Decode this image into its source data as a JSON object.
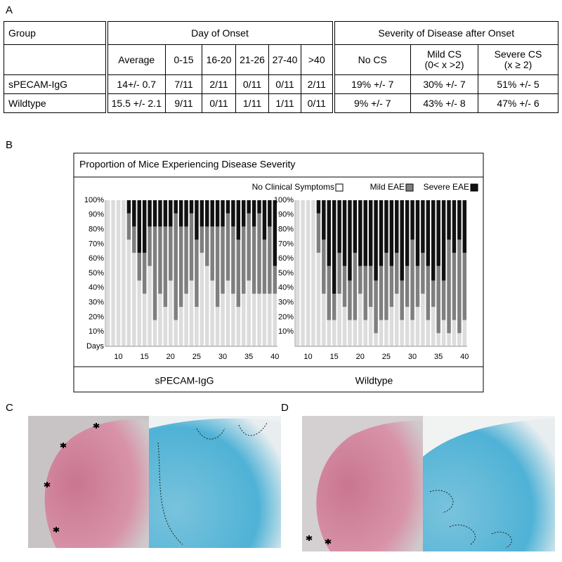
{
  "panel_a": {
    "label": "A",
    "header1": [
      "Group",
      "Day of Onset",
      "Severity of Disease after Onset"
    ],
    "header2": [
      "Average",
      "0-15",
      "16-20",
      "21-26",
      "27-40",
      ">40",
      "No CS",
      [
        "Mild CS",
        "(0< x >2)"
      ],
      [
        "Severe CS",
        "(x ≥ 2)"
      ]
    ],
    "rows": [
      [
        "sPECAM-IgG",
        "14+/- 0.7",
        "7/11",
        "2/11",
        "0/11",
        "0/11",
        "2/11",
        "19% +/- 7",
        "30% +/- 7",
        "51% +/- 5"
      ],
      [
        "Wildtype",
        "15.5 +/- 2.1",
        "9/11",
        "0/11",
        "1/11",
        "1/11",
        "0/11",
        "9% +/- 7",
        "43% +/- 8",
        "47% +/- 6"
      ]
    ]
  },
  "panel_b": {
    "label": "B",
    "title": "Proportion of Mice Experiencing Disease Severity"
  },
  "panel_c": {
    "label": "C"
  },
  "panel_d": {
    "label": "D"
  },
  "chart_data": [
    {
      "type": "bar",
      "stacked": true,
      "label": "sPECAM-IgG",
      "xlabel": "Days",
      "x": [
        8,
        9,
        10,
        11,
        12,
        13,
        14,
        15,
        16,
        17,
        18,
        19,
        20,
        21,
        22,
        23,
        24,
        25,
        26,
        27,
        28,
        29,
        30,
        31,
        32,
        33,
        34,
        35,
        36,
        37,
        38,
        39,
        40
      ],
      "xlim": [
        7.5,
        40.5
      ],
      "xticks": [
        10,
        15,
        20,
        25,
        30,
        35,
        40
      ],
      "ylim": [
        0,
        100
      ],
      "yticks": [
        {
          "value": 10,
          "label": "10%"
        },
        {
          "value": 20,
          "label": "20%"
        },
        {
          "value": 30,
          "label": "30%"
        },
        {
          "value": 40,
          "label": "40%"
        },
        {
          "value": 50,
          "label": "50%"
        },
        {
          "value": 60,
          "label": "60%"
        },
        {
          "value": 70,
          "label": "70%"
        },
        {
          "value": 80,
          "label": "80%"
        },
        {
          "value": 90,
          "label": "90%"
        },
        {
          "value": 100,
          "label": "100%"
        }
      ],
      "series": [
        {
          "name": "No Clinical Symptoms",
          "color": "#dcdcdc",
          "values": [
            100,
            100,
            100,
            100,
            73,
            64,
            45,
            36,
            55,
            18,
            36,
            27,
            45,
            18,
            27,
            36,
            45,
            27,
            64,
            55,
            45,
            27,
            36,
            45,
            36,
            27,
            36,
            45,
            36,
            36,
            36,
            36,
            36
          ]
        },
        {
          "name": "Mild EAE",
          "color": "#7f7f7f",
          "values": [
            0,
            0,
            0,
            0,
            18,
            18,
            19,
            28,
            27,
            64,
            46,
            55,
            37,
            73,
            55,
            46,
            46,
            46,
            18,
            27,
            37,
            55,
            46,
            46,
            46,
            46,
            46,
            46,
            46,
            55,
            37,
            46,
            19
          ]
        },
        {
          "name": "Severe EAE",
          "color": "#111111",
          "values": [
            0,
            0,
            0,
            0,
            9,
            18,
            36,
            36,
            18,
            18,
            18,
            18,
            18,
            9,
            18,
            18,
            9,
            27,
            18,
            18,
            18,
            18,
            18,
            9,
            18,
            27,
            18,
            9,
            18,
            9,
            27,
            18,
            45
          ]
        }
      ]
    },
    {
      "type": "bar",
      "stacked": true,
      "label": "Wildtype",
      "x": [
        8,
        9,
        10,
        11,
        12,
        13,
        14,
        15,
        16,
        17,
        18,
        19,
        20,
        21,
        22,
        23,
        24,
        25,
        26,
        27,
        28,
        29,
        30,
        31,
        32,
        33,
        34,
        35,
        36,
        37,
        38,
        39,
        40
      ],
      "xlim": [
        7.5,
        40.5
      ],
      "xticks": [
        10,
        15,
        20,
        25,
        30,
        35,
        40
      ],
      "ylim": [
        0,
        100
      ],
      "yticks": [
        {
          "value": 10,
          "label": "10%"
        },
        {
          "value": 20,
          "label": "20%"
        },
        {
          "value": 30,
          "label": "30%"
        },
        {
          "value": 40,
          "label": "40%"
        },
        {
          "value": 50,
          "label": "50%"
        },
        {
          "value": 60,
          "label": "60%"
        },
        {
          "value": 70,
          "label": "70%"
        },
        {
          "value": 80,
          "label": "80%"
        },
        {
          "value": 90,
          "label": "90%"
        },
        {
          "value": 100,
          "label": "100%"
        }
      ],
      "series": [
        {
          "color": "#dcdcdc",
          "values": [
            100,
            100,
            100,
            100,
            64,
            36,
            18,
            18,
            36,
            27,
            18,
            18,
            36,
            18,
            27,
            9,
            18,
            18,
            27,
            36,
            18,
            27,
            18,
            27,
            36,
            18,
            27,
            9,
            18,
            9,
            18,
            9,
            18
          ]
        },
        {
          "color": "#7f7f7f",
          "values": [
            0,
            0,
            0,
            0,
            27,
            37,
            37,
            18,
            28,
            28,
            27,
            46,
            19,
            37,
            28,
            36,
            37,
            46,
            28,
            28,
            27,
            28,
            55,
            28,
            28,
            37,
            18,
            46,
            27,
            64,
            46,
            64,
            46
          ]
        },
        {
          "color": "#111111",
          "values": [
            0,
            0,
            0,
            0,
            9,
            27,
            45,
            64,
            36,
            45,
            55,
            36,
            45,
            45,
            45,
            55,
            45,
            36,
            45,
            36,
            55,
            45,
            27,
            45,
            36,
            45,
            55,
            45,
            55,
            27,
            36,
            27,
            36
          ]
        }
      ]
    }
  ]
}
